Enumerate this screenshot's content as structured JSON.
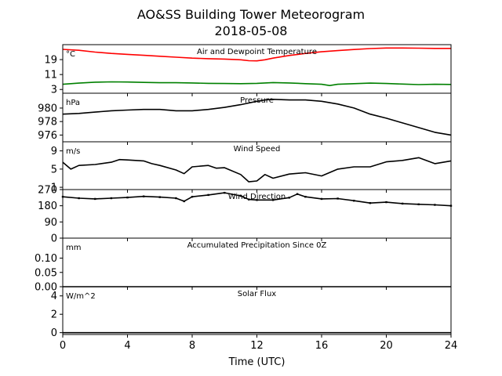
{
  "title": "AO&SS Building Tower Meteorogram",
  "subtitle": "2018-05-08",
  "xlabel": "Time (UTC)",
  "colors": {
    "temperature": "#ff0000",
    "dewpoint": "#008000",
    "default": "#000000"
  },
  "chart_data": [
    {
      "type": "line",
      "title": "Air and Dewpoint Temperature",
      "unit": "°C",
      "x_range": [
        0,
        24
      ],
      "x_ticks": [
        0,
        4,
        8,
        12,
        16,
        20,
        24
      ],
      "ylim": [
        1,
        27
      ],
      "y_ticks": [
        3,
        11,
        19
      ],
      "series": [
        {
          "color": "#ff0000",
          "x": [
            0,
            1,
            2,
            3,
            4,
            5,
            6,
            7,
            8,
            9,
            10,
            11,
            11.5,
            12,
            12.5,
            13,
            14,
            15,
            16,
            17,
            18,
            19,
            20,
            21,
            22,
            23,
            24
          ],
          "y": [
            24.5,
            24,
            23,
            22.3,
            21.8,
            21.3,
            20.8,
            20.3,
            19.8,
            19.5,
            19.3,
            18.9,
            18.4,
            18.3,
            18.9,
            19.8,
            21.2,
            22.3,
            23.2,
            23.8,
            24.4,
            24.9,
            25.2,
            25.2,
            25.1,
            25,
            25
          ]
        },
        {
          "color": "#008000",
          "x": [
            0,
            1,
            2,
            3,
            4,
            5,
            6,
            7,
            8,
            9,
            10,
            11,
            12,
            13,
            14,
            15,
            16,
            16.5,
            17,
            18,
            19,
            20,
            21,
            22,
            23,
            24
          ],
          "y": [
            5.8,
            6.4,
            6.9,
            7.1,
            7,
            6.8,
            6.6,
            6.6,
            6.5,
            6.3,
            6.2,
            6.1,
            6.3,
            6.7,
            6.5,
            6.1,
            5.8,
            5.1,
            5.8,
            6.1,
            6.4,
            6.2,
            5.9,
            5.6,
            5.8,
            5.7
          ]
        }
      ]
    },
    {
      "type": "line",
      "title": "Pressure",
      "unit": "hPa",
      "x_range": [
        0,
        24
      ],
      "x_ticks": [
        0,
        4,
        8,
        12,
        16,
        20,
        24
      ],
      "ylim": [
        975,
        982.2
      ],
      "y_ticks": [
        976,
        978,
        980
      ],
      "series": [
        {
          "color": "#000000",
          "x": [
            0,
            1,
            2,
            3,
            4,
            5,
            6,
            7,
            8,
            9,
            10,
            11,
            12,
            12.5,
            13,
            14,
            15,
            16,
            17,
            18,
            19,
            20,
            21,
            22,
            23,
            24
          ],
          "y": [
            979.1,
            979.2,
            979.4,
            979.6,
            979.7,
            979.8,
            979.8,
            979.6,
            979.6,
            979.8,
            980.1,
            980.5,
            981,
            981.2,
            981.3,
            981.2,
            981.2,
            981,
            980.6,
            980,
            979.1,
            978.5,
            977.8,
            977.1,
            976.4,
            976
          ]
        }
      ]
    },
    {
      "type": "line",
      "title": "Wind Speed",
      "unit": "m/s",
      "x_range": [
        0,
        24
      ],
      "x_ticks": [
        0,
        4,
        8,
        12,
        16,
        20,
        24
      ],
      "ylim": [
        0.5,
        11
      ],
      "y_ticks": [
        1,
        5,
        9
      ],
      "series": [
        {
          "color": "#000000",
          "x": [
            0,
            0.5,
            1,
            2,
            3,
            3.5,
            4,
            5,
            5.5,
            6,
            7,
            7.5,
            8,
            9,
            9.5,
            10,
            11,
            11.5,
            12,
            12.5,
            13,
            14,
            15,
            16,
            17,
            18,
            19,
            20,
            21,
            22,
            23,
            24
          ],
          "y": [
            6.5,
            5,
            5.8,
            6,
            6.5,
            7.1,
            7,
            6.8,
            6.2,
            5.8,
            4.8,
            4,
            5.5,
            5.8,
            5.2,
            5.3,
            3.8,
            2.2,
            2.4,
            3.8,
            3,
            3.9,
            4.2,
            3.5,
            5,
            5.5,
            5.5,
            6.6,
            6.9,
            7.5,
            6.2,
            6.8
          ]
        }
      ]
    },
    {
      "type": "scatter",
      "title": "Wind Direction",
      "unit": "",
      "x_range": [
        0,
        24
      ],
      "x_ticks": [
        0,
        4,
        8,
        12,
        16,
        20,
        24
      ],
      "ylim": [
        0,
        270
      ],
      "y_ticks": [
        0,
        90,
        180,
        270
      ],
      "series": [
        {
          "color": "#000000",
          "x": [
            0,
            1,
            2,
            3,
            4,
            5,
            6,
            7,
            7.5,
            8,
            9,
            10,
            11,
            11.5,
            12,
            13,
            14,
            14.5,
            15,
            16,
            17,
            18,
            19,
            20,
            21,
            22,
            23,
            24
          ],
          "y": [
            230,
            222,
            218,
            222,
            226,
            232,
            228,
            222,
            205,
            230,
            240,
            252,
            235,
            215,
            212,
            212,
            225,
            245,
            230,
            218,
            220,
            208,
            195,
            200,
            192,
            188,
            185,
            180
          ]
        }
      ]
    },
    {
      "type": "line",
      "title": "Accumulated Precipitation Since 0Z",
      "unit": "mm",
      "x_range": [
        0,
        24
      ],
      "x_ticks": [
        0,
        4,
        8,
        12,
        16,
        20,
        24
      ],
      "ylim": [
        0,
        0.17
      ],
      "y_ticks": [
        0.0,
        0.05,
        0.1
      ],
      "y_tick_labels": [
        "0.00",
        "0.05",
        "0.10"
      ],
      "series": [
        {
          "color": "#000000",
          "x": [
            0,
            24
          ],
          "y": [
            0,
            0
          ]
        }
      ]
    },
    {
      "type": "line",
      "title": "Solar Flux",
      "unit": "W/m^2",
      "x_range": [
        0,
        24
      ],
      "x_ticks": [
        0,
        4,
        8,
        12,
        16,
        20,
        24
      ],
      "x_tick_labels": [
        "0",
        "4",
        "8",
        "12",
        "16",
        "20",
        "24"
      ],
      "ylim": [
        -0.2,
        5
      ],
      "y_ticks": [
        0,
        2,
        4
      ],
      "series": [
        {
          "color": "#000000",
          "x": [
            0,
            24
          ],
          "y": [
            0,
            0
          ]
        }
      ]
    }
  ]
}
